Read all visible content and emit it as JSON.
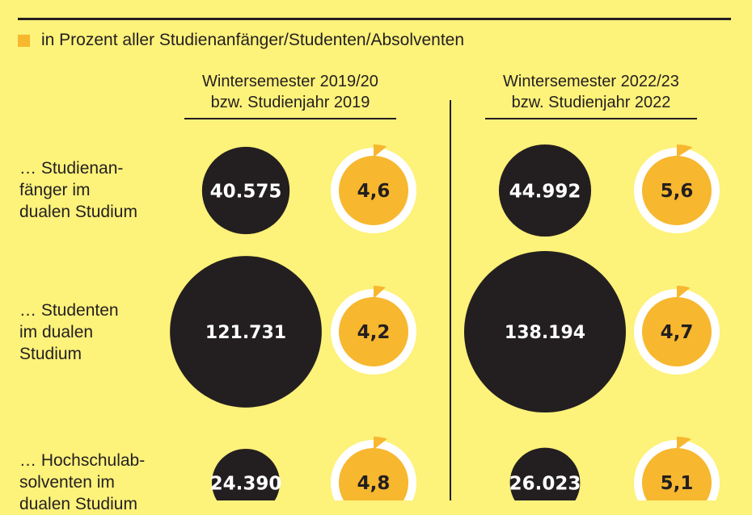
{
  "legend": {
    "text": "in Prozent aller Studienanfänger/Studenten/Absolventen",
    "color": "#f7b72e"
  },
  "colors": {
    "background": "#fdf27a",
    "bubble": "#231f20",
    "ring": "#ffffff",
    "pct_fill": "#f7b72e"
  },
  "chart_data": {
    "type": "bubble",
    "columns": [
      {
        "line1": "Wintersemester 2019/20",
        "line2": "bzw. Studienjahr 2019"
      },
      {
        "line1": "Wintersemester 2022/23",
        "line2": "bzw. Studienjahr 2022"
      }
    ],
    "rows": [
      {
        "label": [
          "… Studienan-",
          "fänger im",
          "dualen Studium"
        ],
        "values": [
          {
            "count": 40575,
            "count_label": "40.575",
            "percent": 4.6,
            "percent_label": "4,6"
          },
          {
            "count": 44992,
            "count_label": "44.992",
            "percent": 5.6,
            "percent_label": "5,6"
          }
        ]
      },
      {
        "label": [
          "… Studenten",
          "im dualen",
          "Studium"
        ],
        "values": [
          {
            "count": 121731,
            "count_label": "121.731",
            "percent": 4.2,
            "percent_label": "4,2"
          },
          {
            "count": 138194,
            "count_label": "138.194",
            "percent": 4.7,
            "percent_label": "4,7"
          }
        ]
      },
      {
        "label": [
          "… Hochschulab-",
          "solventen im",
          "dualen Studium"
        ],
        "values": [
          {
            "count": 24390,
            "count_label": "24.390",
            "percent": 4.8,
            "percent_label": "4,8"
          },
          {
            "count": 26023,
            "count_label": "26.023",
            "percent": 5.1,
            "percent_label": "5,1"
          }
        ]
      }
    ]
  }
}
